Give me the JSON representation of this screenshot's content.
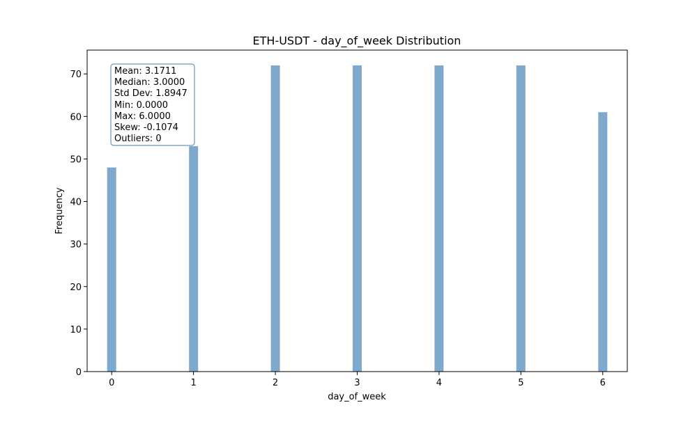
{
  "chart_data": {
    "type": "bar",
    "title": "ETH-USDT - day_of_week Distribution",
    "xlabel": "day_of_week",
    "ylabel": "Frequency",
    "x": [
      0,
      1,
      2,
      3,
      4,
      5,
      6
    ],
    "values": [
      48,
      53,
      72,
      72,
      72,
      72,
      61
    ],
    "xlim": [
      -0.3,
      6.3
    ],
    "ylim": [
      0,
      75.6
    ],
    "xticks": [
      "0",
      "1",
      "2",
      "3",
      "4",
      "5",
      "6"
    ],
    "yticks": [
      "0",
      "10",
      "20",
      "30",
      "40",
      "50",
      "60",
      "70"
    ],
    "bar_color": "#7fa8cd",
    "grid": false,
    "legend": null,
    "stats_box": {
      "position": "top-left",
      "lines": [
        "Mean: 3.1711",
        "Median: 3.0000",
        "Std Dev: 1.8947",
        "Min: 0.0000",
        "Max: 6.0000",
        "Skew: -0.1074",
        "Outliers: 0"
      ],
      "border_color": "#6b93bd"
    }
  }
}
